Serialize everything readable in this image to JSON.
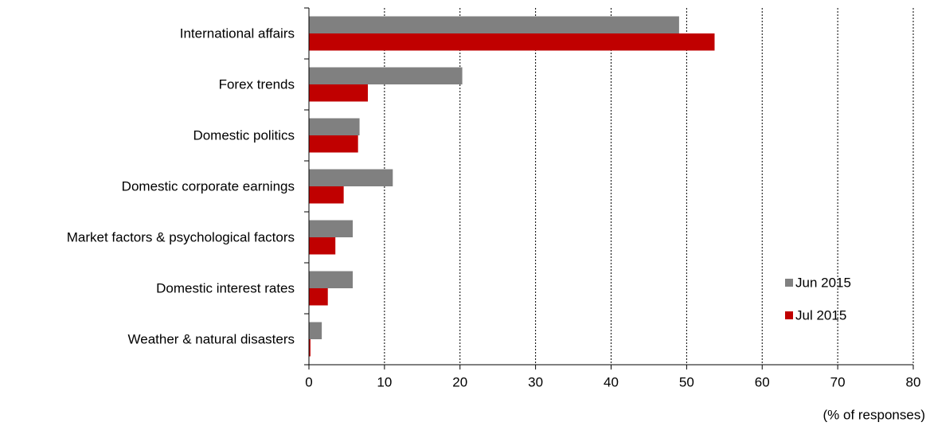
{
  "chart_data": {
    "type": "bar",
    "orientation": "horizontal",
    "categories": [
      "International affairs",
      "Forex trends",
      "Domestic politics",
      "Domestic corporate earnings",
      "Market factors & psychological factors",
      "Domestic interest rates",
      "Weather & natural disasters"
    ],
    "series": [
      {
        "name": "Jun 2015",
        "color": "#808080",
        "values": [
          49,
          20.3,
          6.7,
          11.1,
          5.8,
          5.8,
          1.7
        ]
      },
      {
        "name": "Jul 2015",
        "color": "#c00000",
        "values": [
          53.7,
          7.8,
          6.5,
          4.6,
          3.5,
          2.5,
          0.2
        ]
      }
    ],
    "xlim": [
      0,
      80
    ],
    "xticks": [
      0,
      10,
      20,
      30,
      40,
      50,
      60,
      70,
      80
    ],
    "x_label": "(% of responses)",
    "grid": true,
    "legend": "lower right"
  }
}
